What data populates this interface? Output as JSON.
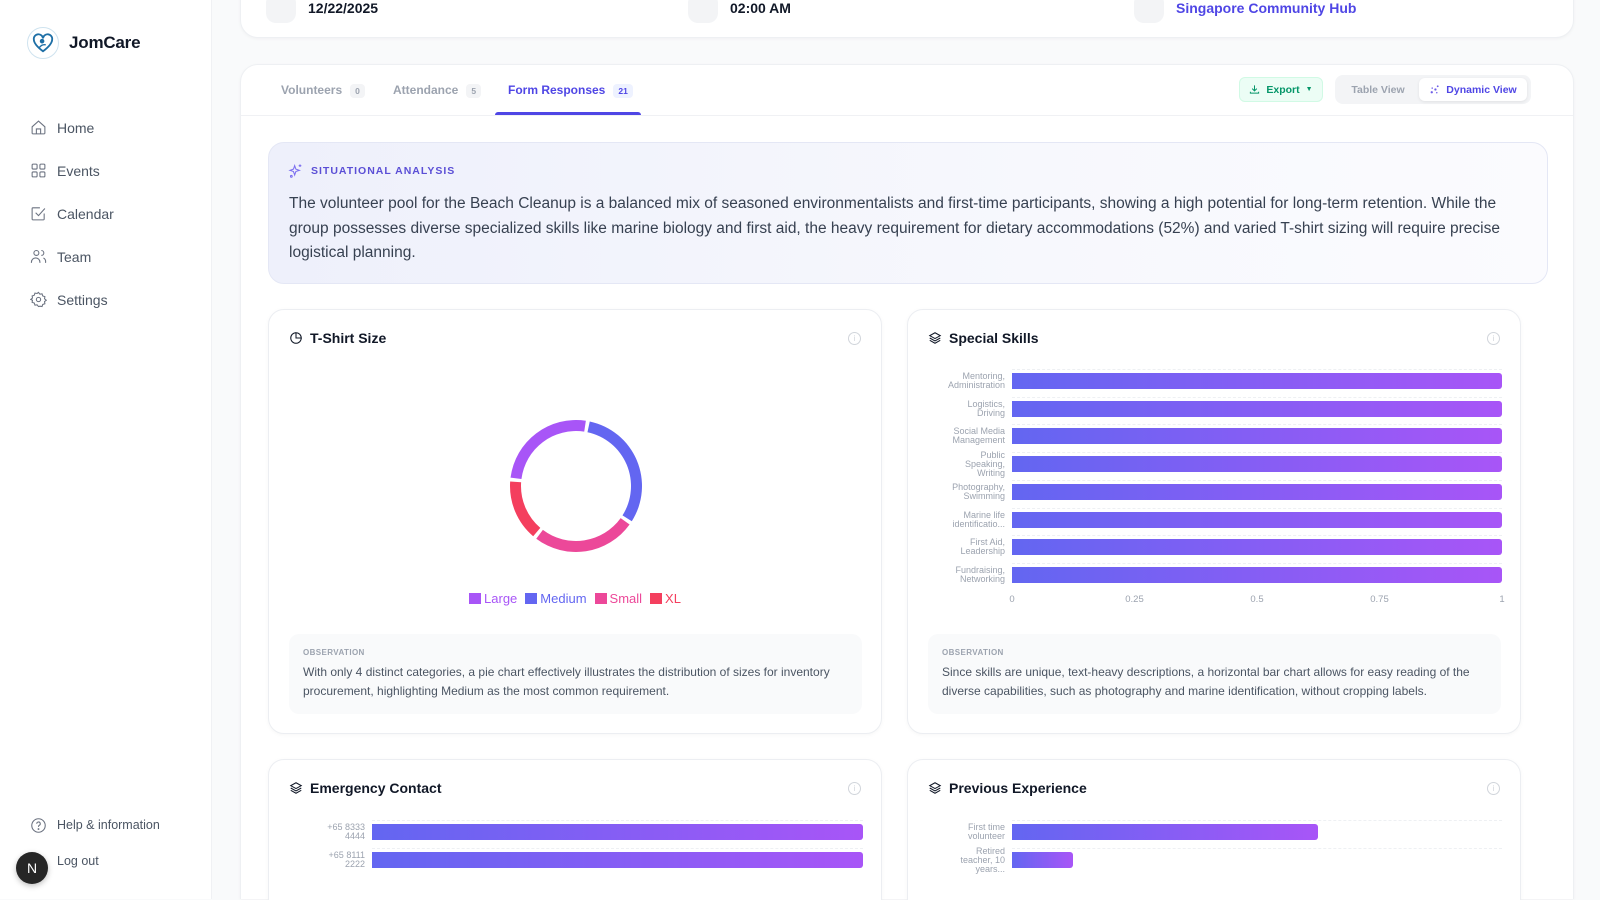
{
  "app": {
    "name": "JomCare"
  },
  "sidebar": {
    "items": [
      {
        "label": "Home",
        "icon": "home-icon"
      },
      {
        "label": "Events",
        "icon": "grid-icon"
      },
      {
        "label": "Calendar",
        "icon": "calendar-check-icon"
      },
      {
        "label": "Team",
        "icon": "users-icon"
      },
      {
        "label": "Settings",
        "icon": "gear-icon"
      }
    ],
    "help_label": "Help & information",
    "logout_label": "Log out",
    "avatar_initial": "N"
  },
  "event_info": {
    "date": "12/22/2025",
    "time": "02:00 AM",
    "location": "Singapore Community Hub"
  },
  "tabs": [
    {
      "label": "Volunteers",
      "count": "0",
      "active": false
    },
    {
      "label": "Attendance",
      "count": "5",
      "active": false
    },
    {
      "label": "Form Responses",
      "count": "21",
      "active": true
    }
  ],
  "toolbar": {
    "export_label": "Export",
    "table_view_label": "Table View",
    "dynamic_view_label": "Dynamic View",
    "active_view": "Dynamic View"
  },
  "analysis": {
    "heading": "SITUATIONAL ANALYSIS",
    "text": "The volunteer pool for the Beach Cleanup is a balanced mix of seasoned environmentalists and first-time participants, showing a high potential for long-term retention. While the group possesses diverse specialized skills like marine biology and first aid, the heavy requirement for dietary accommodations (52%) and varied T-shirt sizing will require precise logistical planning."
  },
  "cards": {
    "tshirt": {
      "title": "T-Shirt Size",
      "observation_label": "OBSERVATION",
      "observation": "With only 4 distinct categories, a pie chart effectively illustrates the distribution of sizes for inventory procurement, highlighting Medium as the most common requirement."
    },
    "skills": {
      "title": "Special Skills",
      "observation_label": "OBSERVATION",
      "observation": "Since skills are unique, text-heavy descriptions, a horizontal bar chart allows for easy reading of the diverse capabilities, such as photography and marine identification, without cropping labels."
    },
    "emergency": {
      "title": "Emergency Contact"
    },
    "experience": {
      "title": "Previous Experience"
    }
  },
  "colors": {
    "accent": "#4f46e5",
    "bar_start": "#6366f1",
    "bar_end": "#a855f7",
    "export_green": "#059669"
  },
  "chart_data": [
    {
      "id": "tshirt",
      "type": "pie",
      "title": "T-Shirt Size",
      "categories": [
        "Large",
        "Medium",
        "Small",
        "XL"
      ],
      "values": [
        5,
        6,
        5,
        3
      ],
      "colors": [
        "#a855f7",
        "#6366f1",
        "#ec4899",
        "#f43f5e"
      ],
      "legend": "bottom"
    },
    {
      "id": "skills",
      "type": "bar",
      "orientation": "horizontal",
      "title": "Special Skills",
      "categories": [
        [
          "Mentoring,",
          "Administration"
        ],
        [
          "Logistics,",
          "Driving"
        ],
        [
          "Social Media",
          "Management"
        ],
        [
          "Public",
          "Speaking,",
          "Writing"
        ],
        [
          "Photography,",
          "Swimming"
        ],
        [
          "Marine life",
          "identificatio..."
        ],
        [
          "First Aid,",
          "Leadership"
        ],
        [
          "Fundraising,",
          "Networking"
        ]
      ],
      "values": [
        1,
        1,
        1,
        1,
        1,
        1,
        1,
        1
      ],
      "xlim": [
        0,
        1
      ],
      "xticks": [
        "0",
        "0.25",
        "0.5",
        "0.75",
        "1"
      ]
    },
    {
      "id": "emergency",
      "type": "bar",
      "orientation": "horizontal",
      "title": "Emergency Contact",
      "categories": [
        [
          "+65 8333",
          "4444"
        ],
        [
          "+65 8111",
          "2222"
        ]
      ],
      "values": [
        1,
        1
      ],
      "xlim": [
        0,
        1
      ]
    },
    {
      "id": "experience",
      "type": "bar",
      "orientation": "horizontal",
      "title": "Previous Experience",
      "categories": [
        [
          "First time",
          "volunteer"
        ],
        [
          "Retired",
          "teacher, 10",
          "years..."
        ]
      ],
      "values": [
        0.625,
        0.125
      ],
      "xlim": [
        0,
        1
      ]
    }
  ]
}
